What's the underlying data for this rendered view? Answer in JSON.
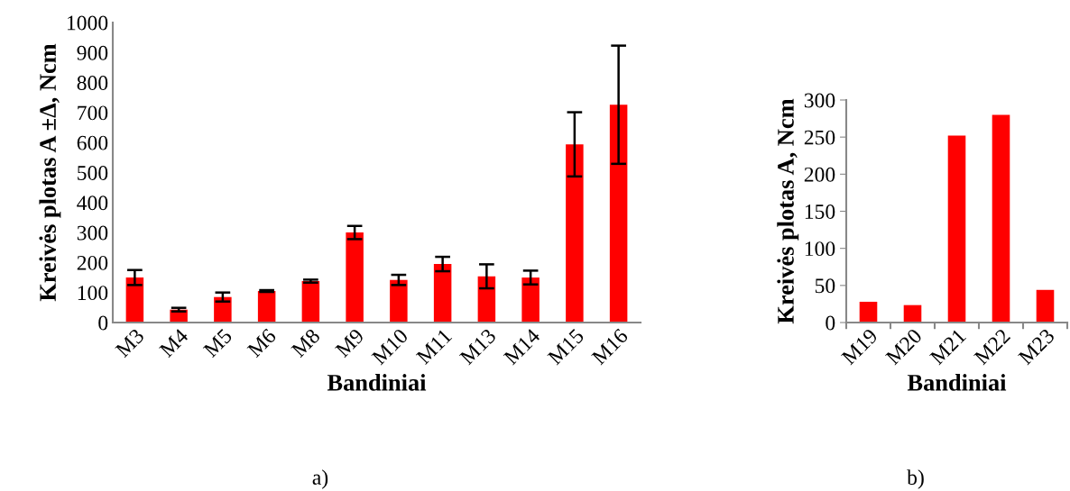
{
  "chart_data": [
    {
      "type": "bar",
      "categories": [
        "M3",
        "M4",
        "M5",
        "M6",
        "M8",
        "M9",
        "M10",
        "M11",
        "M13",
        "M14",
        "M15",
        "M16"
      ],
      "values": [
        150,
        43,
        85,
        105,
        138,
        300,
        142,
        195,
        154,
        150,
        594,
        726
      ],
      "errors": [
        25,
        6,
        15,
        3,
        5,
        22,
        17,
        24,
        40,
        23,
        107,
        197
      ],
      "color": "#ff0000",
      "xlabel": "Bandiniai",
      "ylabel": "Kreivės plotas A ±Δ, Ncm",
      "ylim": [
        0,
        1000
      ],
      "yticks": [
        0,
        100,
        200,
        300,
        400,
        500,
        600,
        700,
        800,
        900,
        1000
      ],
      "annotations": [
        "a)"
      ]
    },
    {
      "type": "bar",
      "categories": [
        "M19",
        "M20",
        "M21",
        "M22",
        "M23"
      ],
      "values": [
        28,
        23.5,
        252,
        280,
        44
      ],
      "color": "#ff0000",
      "xlabel": "Bandiniai",
      "ylabel": "Kreivės plotas A, Ncm",
      "ylim": [
        0,
        300
      ],
      "yticks": [
        0,
        50,
        100,
        150,
        200,
        250,
        300
      ],
      "annotations": [
        "b)"
      ]
    }
  ]
}
